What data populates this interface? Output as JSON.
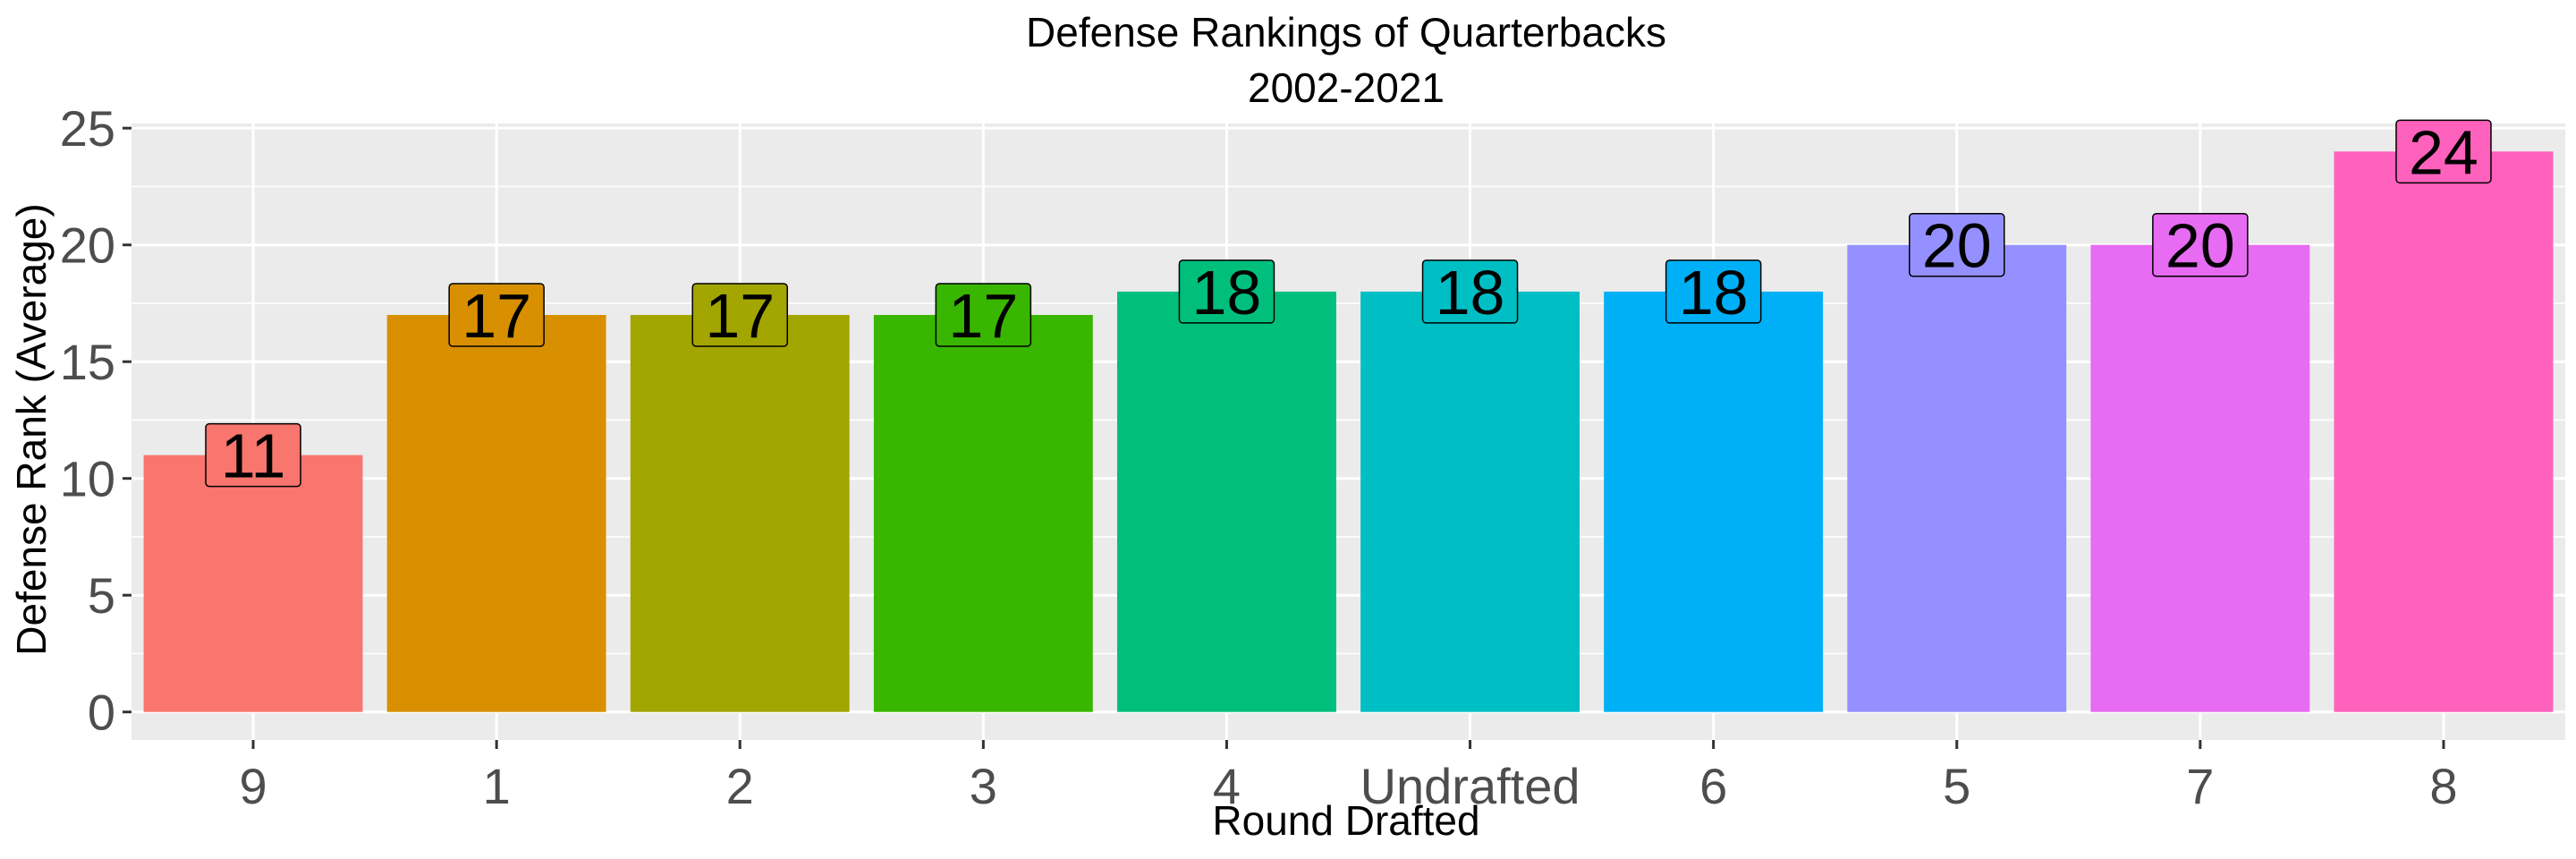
{
  "chart_data": {
    "type": "bar",
    "title": "Defense Rankings of Quarterbacks",
    "subtitle": "2002-2021",
    "xlabel": "Round Drafted",
    "ylabel": "Defense Rank (Average)",
    "categories": [
      "9",
      "1",
      "2",
      "3",
      "4",
      "Undrafted",
      "6",
      "5",
      "7",
      "8"
    ],
    "values": [
      11,
      17,
      17,
      17,
      18,
      18,
      18,
      20,
      20,
      24
    ],
    "data_labels": [
      "11",
      "17",
      "17",
      "17",
      "18",
      "18",
      "18",
      "20",
      "20",
      "24"
    ],
    "colors": [
      "#F8766D",
      "#D89000",
      "#A3A500",
      "#39B600",
      "#00BF7D",
      "#00BFC4",
      "#00B0F6",
      "#9590FF",
      "#E76BF3",
      "#FF62BC"
    ],
    "ylim": [
      -1.2,
      25.2
    ],
    "yticks": [
      0,
      5,
      10,
      15,
      20,
      25
    ],
    "ytick_labels": [
      "0",
      "5",
      "10",
      "15",
      "20",
      "25"
    ],
    "grid": true,
    "legend": "none",
    "panel_background": "#EBEBEB",
    "grid_color": "#FFFFFF"
  }
}
